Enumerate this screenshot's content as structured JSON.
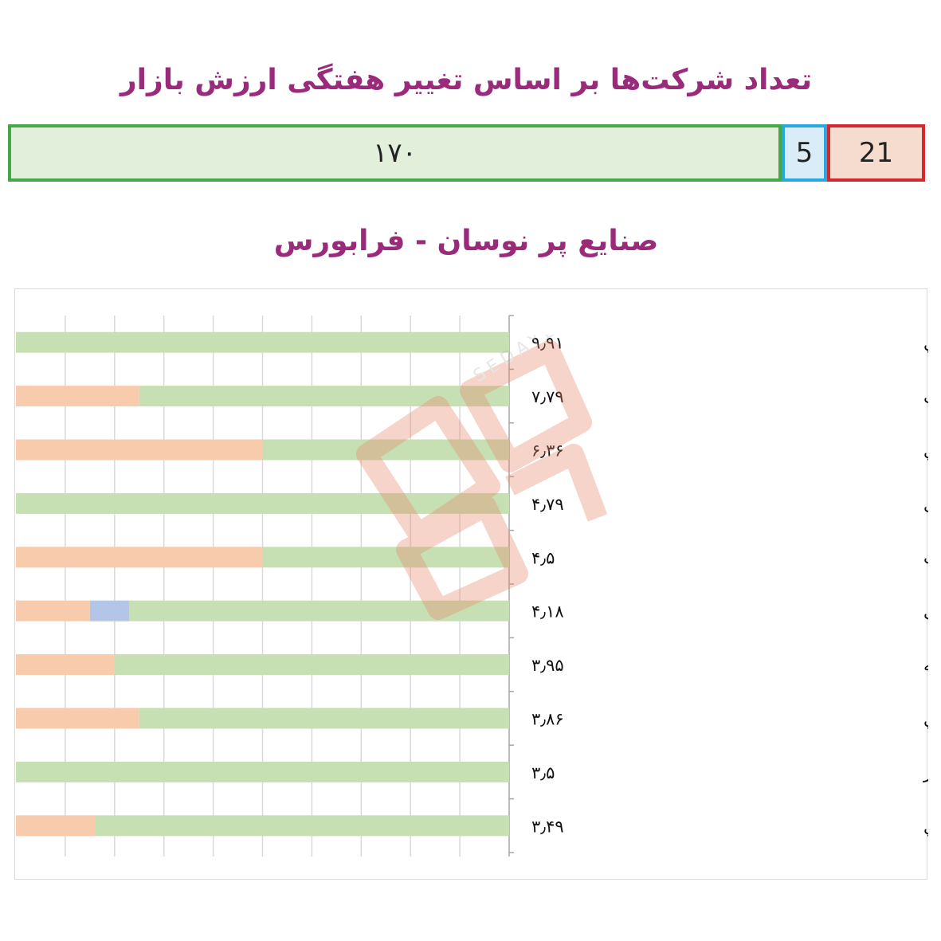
{
  "summary": {
    "title": "تعداد شرکت‌ها بر اساس تغییر هفتگی ارزش بازار",
    "up_count": "۱۷۰",
    "flat_count": "5",
    "down_count": "21",
    "colors": {
      "up": "#43a847",
      "flat": "#25a9e0",
      "down": "#d4282e"
    }
  },
  "chart_data": {
    "type": "bar",
    "orientation": "horizontal-stacked-percent",
    "title": "صنایع پر نوسان - فرابورس",
    "categories": [
      "تولید ماشین آلات اداري، حسابداري و محاسباتي",
      "استخراج ذغال سنگ",
      "ماشين آلات و دستگاه هاي برقي",
      "استخراج کانه های فلزی",
      "مخابرات",
      "مواد و محصولات دارویی",
      "خرده فروشی به استثنای وسایل نقلیه",
      "فعاليت هاي جنبي مرتبط با واسطه گري مالي",
      "قند و شکر",
      "محصولات غذايي و آشاميدني"
    ],
    "value_labels": [
      "۹٫۹۱",
      "۷٫۷۹",
      "۶٫۳۶",
      "۴٫۷۹",
      "۴٫۵",
      "۴٫۱۸",
      "۳٫۹۵",
      "۳٫۸۶",
      "۳٫۵",
      "۳٫۴۹"
    ],
    "series": [
      {
        "key": "up",
        "color": "#c6e0b4",
        "values": [
          100,
          75,
          50,
          100,
          50,
          77,
          80,
          75,
          100,
          84
        ]
      },
      {
        "key": "flat",
        "color": "#b4c6e7",
        "values": [
          0,
          0,
          0,
          0,
          0,
          8,
          0,
          0,
          0,
          0
        ]
      },
      {
        "key": "down",
        "color": "#f8cbad",
        "values": [
          0,
          25,
          50,
          0,
          50,
          15,
          20,
          25,
          0,
          16
        ]
      }
    ],
    "xlim": [
      0,
      100
    ],
    "grid": true,
    "legend": "none"
  },
  "watermark": {
    "text": "SEDAYE BOURSE"
  }
}
